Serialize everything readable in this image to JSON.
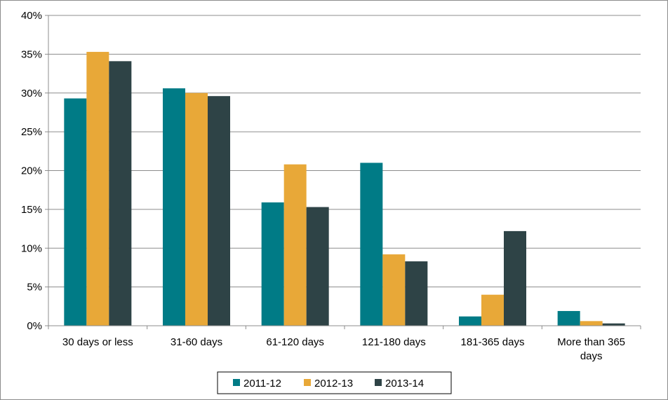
{
  "chart_data": {
    "type": "bar",
    "categories": [
      [
        "30 days or less"
      ],
      [
        "31-60 days"
      ],
      [
        "61-120 days"
      ],
      [
        "121-180 days"
      ],
      [
        "181-365 days"
      ],
      [
        "More than 365",
        "days"
      ]
    ],
    "series": [
      {
        "name": "2011-12",
        "color": "#007b86",
        "values": [
          29.3,
          30.6,
          15.9,
          21.0,
          1.2,
          1.9
        ]
      },
      {
        "name": "2012-13",
        "color": "#e8a838",
        "values": [
          35.3,
          30.0,
          20.8,
          9.2,
          4.0,
          0.6
        ]
      },
      {
        "name": "2013-14",
        "color": "#2e4346",
        "values": [
          34.1,
          29.6,
          15.3,
          8.3,
          12.2,
          0.3
        ]
      }
    ],
    "yticks": [
      "0%",
      "5%",
      "10%",
      "15%",
      "20%",
      "25%",
      "30%",
      "35%",
      "40%"
    ],
    "ylim": [
      0,
      40
    ],
    "title": "",
    "xlabel": "",
    "ylabel": "",
    "grid": true,
    "legend": "bottom-center",
    "gridline_color": "#8c8c8c"
  }
}
